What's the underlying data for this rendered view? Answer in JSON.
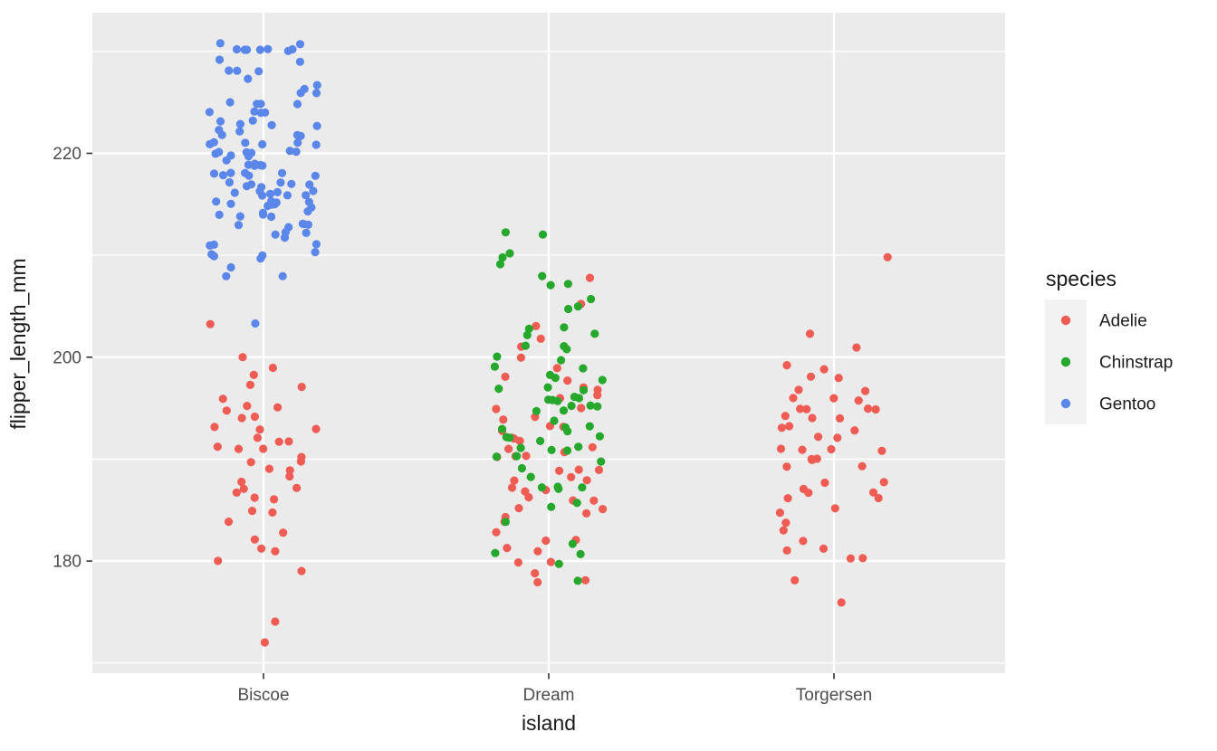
{
  "figure": {
    "background": "#ffffff",
    "panel_background": "#ebebeb",
    "grid_color": "#ffffff",
    "tick_mark_color": "#333333",
    "tick_label_color": "#4d4d4d",
    "title_color": "#1a1a1a",
    "legend_key_background": "#f2f2f2"
  },
  "chart_data": {
    "type": "scatter",
    "title": "",
    "xlabel": "island",
    "ylabel": "flipper_length_mm",
    "categories": [
      "Biscoe",
      "Dream",
      "Torgersen"
    ],
    "y_major_ticks": [
      180,
      200,
      220
    ],
    "y_minor_gridlines": [
      170,
      190,
      210,
      230
    ],
    "ylim": [
      169,
      233.8
    ],
    "jitter_width": 0.19,
    "jitter_height": 0.32,
    "point_colors": {
      "Adelie": "#ee5c54",
      "Chinstrap": "#26a82c",
      "Gentoo": "#5b87ea"
    },
    "legend": {
      "title": "species",
      "position": "right",
      "entries": [
        {
          "label": "Adelie",
          "color": "#ee5c54"
        },
        {
          "label": "Chinstrap",
          "color": "#26a82c"
        },
        {
          "label": "Gentoo",
          "color": "#5b87ea"
        }
      ]
    },
    "series": [
      {
        "species": "Adelie",
        "island": "Biscoe",
        "color": "#ee5c54",
        "flipper_length_mm": [
          172,
          174,
          179,
          180,
          181,
          181,
          182,
          183,
          184,
          185,
          185,
          186,
          186,
          187,
          187,
          187,
          188,
          188,
          189,
          189,
          190,
          190,
          190,
          191,
          191,
          191,
          192,
          192,
          192,
          193,
          193,
          193,
          194,
          194,
          195,
          195,
          195,
          196,
          197,
          197,
          198,
          199,
          200,
          203
        ]
      },
      {
        "species": "Adelie",
        "island": "Dream",
        "color": "#ee5c54",
        "flipper_length_mm": [
          178,
          178,
          179,
          180,
          180,
          181,
          181,
          182,
          182,
          183,
          184,
          184,
          185,
          185,
          185,
          186,
          186,
          186,
          187,
          187,
          187,
          188,
          188,
          188,
          189,
          189,
          189,
          190,
          190,
          190,
          191,
          191,
          191,
          192,
          192,
          192,
          193,
          193,
          193,
          194,
          194,
          195,
          195,
          196,
          196,
          197,
          197,
          198,
          198,
          199,
          200,
          201,
          202,
          203,
          205,
          208
        ]
      },
      {
        "species": "Adelie",
        "island": "Torgersen",
        "color": "#ee5c54",
        "flipper_length_mm": [
          176,
          178,
          180,
          180,
          181,
          181,
          182,
          183,
          184,
          185,
          185,
          186,
          186,
          187,
          187,
          187,
          188,
          188,
          189,
          189,
          190,
          190,
          190,
          191,
          191,
          191,
          191,
          192,
          192,
          193,
          193,
          193,
          194,
          194,
          194,
          195,
          195,
          195,
          195,
          196,
          196,
          196,
          197,
          197,
          198,
          198,
          199,
          199,
          201,
          202,
          210
        ]
      },
      {
        "species": "Chinstrap",
        "island": "Dream",
        "color": "#26a82c",
        "flipper_length_mm": [
          178,
          180,
          181,
          181,
          182,
          184,
          185,
          186,
          187,
          187,
          187,
          187,
          188,
          189,
          190,
          190,
          190,
          191,
          191,
          191,
          191,
          192,
          192,
          192,
          192,
          193,
          193,
          193,
          193,
          194,
          195,
          195,
          195,
          195,
          195,
          196,
          196,
          196,
          196,
          196,
          197,
          197,
          197,
          198,
          198,
          198,
          199,
          199,
          200,
          200,
          201,
          201,
          201,
          202,
          202,
          203,
          203,
          205,
          205,
          206,
          207,
          207,
          208,
          209,
          210,
          210,
          212,
          212
        ]
      },
      {
        "species": "Gentoo",
        "island": "Biscoe",
        "color": "#5b87ea",
        "flipper_length_mm": [
          203,
          208,
          208,
          209,
          210,
          210,
          210,
          210,
          210,
          211,
          211,
          211,
          212,
          212,
          212,
          212,
          213,
          213,
          213,
          213,
          213,
          214,
          214,
          214,
          214,
          214,
          214,
          215,
          215,
          215,
          215,
          215,
          215,
          215,
          215,
          215,
          216,
          216,
          216,
          216,
          216,
          216,
          216,
          216,
          217,
          217,
          217,
          217,
          217,
          217,
          217,
          218,
          218,
          218,
          218,
          218,
          218,
          218,
          219,
          219,
          219,
          219,
          219,
          219,
          220,
          220,
          220,
          220,
          220,
          220,
          220,
          220,
          221,
          221,
          221,
          221,
          221,
          221,
          222,
          222,
          222,
          222,
          222,
          223,
          223,
          223,
          223,
          223,
          224,
          224,
          224,
          224,
          225,
          225,
          225,
          225,
          226,
          226,
          226,
          227,
          227,
          228,
          228,
          228,
          229,
          229,
          230,
          230,
          230,
          230,
          230,
          230,
          230,
          231,
          231
        ]
      }
    ]
  }
}
